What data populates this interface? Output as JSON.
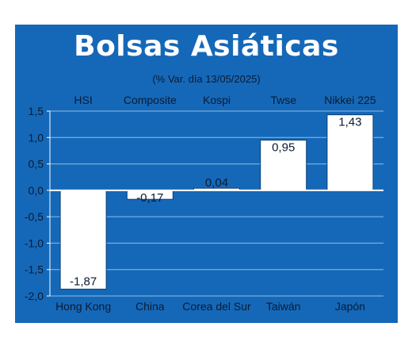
{
  "header": {
    "title": "Bolsas Asiáticas",
    "subtitle": "(% Var. día 13/05/2025)"
  },
  "colors": {
    "panel": "#1568b8",
    "bars": "#ffffff",
    "bar_border": "#0d3f73",
    "grid": "#8fbbe6",
    "axis": "#ffffff",
    "text_dark": "#0b1b33"
  },
  "chart_data": {
    "type": "bar",
    "title": "Bolsas Asiáticas",
    "subtitle": "(% Var. día 13/05/2025)",
    "categories": [
      "Hong Kong",
      "China",
      "Corea del Sur",
      "Taiwán",
      "Japón"
    ],
    "index_labels": [
      "HSI",
      "Composite",
      "Kospi",
      "Twse",
      "Nikkei 225"
    ],
    "values": [
      -1.87,
      -0.17,
      0.04,
      0.95,
      1.43
    ],
    "value_labels": [
      "-1,87",
      "-0,17",
      "0,04",
      "0,95",
      "1,43"
    ],
    "ylim": [
      -2.0,
      1.5
    ],
    "yticks": [
      1.5,
      1.0,
      0.5,
      0.0,
      -0.5,
      -1.0,
      -1.5,
      -2.0
    ],
    "ytick_labels": [
      "1,5",
      "1,0",
      "0,5",
      "0,0",
      "-0,5",
      "-1,0",
      "-1,5",
      "-2,0"
    ],
    "grid": true,
    "legend": "none"
  }
}
